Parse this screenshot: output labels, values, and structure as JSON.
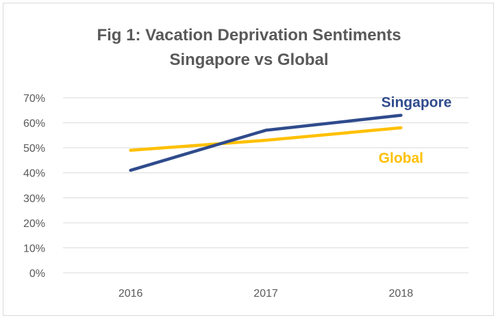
{
  "chart_data": {
    "type": "line",
    "title": "Fig 1: Vacation Deprivation Sentiments",
    "subtitle": "Singapore vs Global",
    "xlabel": "",
    "ylabel": "",
    "categories": [
      "2016",
      "2017",
      "2018"
    ],
    "y_ticks": [
      "0%",
      "10%",
      "20%",
      "30%",
      "40%",
      "50%",
      "60%",
      "70%"
    ],
    "ylim": [
      0,
      70
    ],
    "grid": true,
    "legend": "inline labels at line ends",
    "series": [
      {
        "name": "Singapore",
        "values": [
          41,
          57,
          63
        ],
        "color": "#2f4b8c"
      },
      {
        "name": "Global",
        "values": [
          49,
          53,
          58
        ],
        "color": "#ffc000"
      }
    ],
    "colors": {
      "gridline": "#d9d9d9",
      "tick_label": "#595959",
      "title": "#595959"
    }
  }
}
